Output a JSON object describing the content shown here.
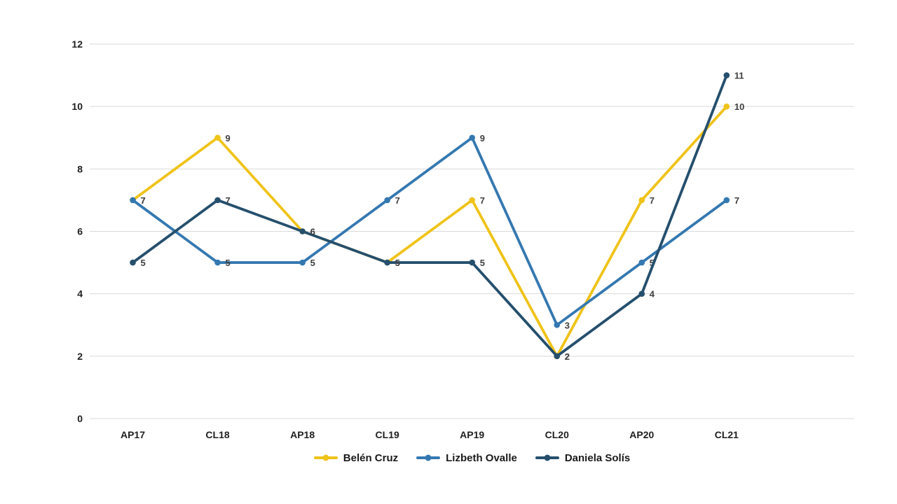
{
  "chart_data": {
    "type": "line",
    "categories": [
      "AP17",
      "CL18",
      "AP18",
      "CL19",
      "AP19",
      "CL20",
      "AP20",
      "CL21"
    ],
    "series": [
      {
        "name": "Belén Cruz",
        "color": "#EFC319",
        "values": [
          7,
          9,
          6,
          5,
          7,
          2,
          7,
          10
        ]
      },
      {
        "name": "Lizbeth Ovalle",
        "color": "#3478B1",
        "values": [
          7,
          5,
          5,
          7,
          9,
          3,
          5,
          7
        ]
      },
      {
        "name": "Daniela Solís",
        "color": "#254F6D",
        "values": [
          5,
          7,
          6,
          5,
          5,
          2,
          4,
          11
        ]
      }
    ],
    "y_ticks": [
      0,
      2,
      4,
      6,
      8,
      10,
      12
    ],
    "ylim": [
      0,
      12
    ],
    "grid": true,
    "legend_position": "bottom",
    "data_labels": true
  },
  "styles": {
    "background": "#FFFFFF",
    "grid_color": "#D9D9D9",
    "tick_label_color": "#1F1F1F",
    "data_label_color": "#404040",
    "legend_text_color": "#1A1A1A"
  }
}
